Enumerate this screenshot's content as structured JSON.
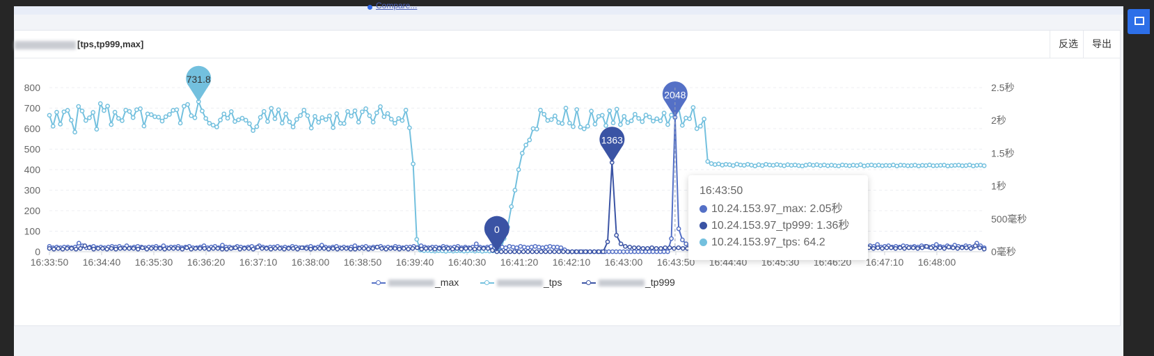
{
  "banner": {
    "link_text": "Compare..."
  },
  "card": {
    "title_suffix": "[tps,tp999,max]",
    "buttons": {
      "invert": "反选",
      "export": "导出"
    }
  },
  "colors": {
    "max": "#5470c6",
    "tps": "#73c0de",
    "tp999": "#3a53a4",
    "accent": "#2d6fe8"
  },
  "tooltip": {
    "time": "16:43:50",
    "rows": [
      {
        "text": "10.24.153.97_max: 2.05秒",
        "color": "#5470c6"
      },
      {
        "text": "10.24.153.97_tp999: 1.36秒",
        "color": "#3a53a4"
      },
      {
        "text": "10.24.153.97_tps: 64.2",
        "color": "#73c0de"
      }
    ]
  },
  "legend": [
    {
      "suffix": "_max",
      "color": "#5470c6"
    },
    {
      "suffix": "_tps",
      "color": "#73c0de"
    },
    {
      "suffix": "_tp999",
      "color": "#3a53a4"
    }
  ],
  "chart_data": {
    "type": "line",
    "x_ticks": [
      "16:33:50",
      "16:34:40",
      "16:35:30",
      "16:36:20",
      "16:37:10",
      "16:38:00",
      "16:38:50",
      "16:39:40",
      "16:40:30",
      "16:41:20",
      "16:42:10",
      "16:43:00",
      "16:43:50",
      "16:44:40",
      "16:45:30",
      "16:46:20",
      "16:47:10",
      "16:48:00"
    ],
    "y_left": {
      "ticks": [
        0,
        100,
        200,
        300,
        400,
        500,
        600,
        700,
        800
      ],
      "range": [
        0,
        800
      ]
    },
    "y_right": {
      "ticks": [
        "0毫秒",
        "500毫秒",
        "1秒",
        "1.5秒",
        "2秒",
        "2.5秒"
      ],
      "range_seconds": [
        0,
        2.5
      ]
    },
    "grid": true,
    "legend_position": "bottom",
    "markers": [
      {
        "series": "tps",
        "label": "731.8"
      },
      {
        "series": "max",
        "label": "2048"
      },
      {
        "series": "tp999",
        "label": "1363"
      },
      {
        "series": "tp999",
        "label": "0"
      }
    ],
    "series": [
      {
        "name": "_max",
        "axis": "right",
        "values": [
          0.08,
          0.06,
          0.07,
          0.06,
          0.07,
          0.07,
          0.06,
          0.07,
          0.13,
          0.09,
          0.06,
          0.07,
          0.08,
          0.06,
          0.07,
          0.06,
          0.07,
          0.08,
          0.07,
          0.08,
          0.06,
          0.09,
          0.06,
          0.07,
          0.08,
          0.07,
          0.06,
          0.07,
          0.07,
          0.08,
          0.06,
          0.09,
          0.06,
          0.07,
          0.07,
          0.08,
          0.06,
          0.07,
          0.08,
          0.06,
          0.06,
          0.07,
          0.09,
          0.06,
          0.07,
          0.08,
          0.06,
          0.1,
          0.07,
          0.07,
          0.06,
          0.08,
          0.07,
          0.06,
          0.07,
          0.08,
          0.06,
          0.09,
          0.07,
          0.06,
          0.07,
          0.07,
          0.08,
          0.06,
          0.07,
          0.06,
          0.08,
          0.07,
          0.06,
          0.06,
          0.07,
          0.08,
          0.06,
          0.07,
          0.1,
          0.07,
          0.06,
          0.07,
          0.08,
          0.06,
          0.07,
          0.06,
          0.07,
          0.09,
          0.06,
          0.07,
          0.08,
          0.06,
          0.07,
          0.07,
          0.08,
          0.06,
          0.07,
          0.06,
          0.08,
          0.07,
          0.06,
          0.07,
          0.07,
          0.08,
          0.06,
          0.09,
          0.07,
          0.06,
          0.07,
          0.07,
          0.06,
          0.08,
          0.07,
          0.06,
          0.07,
          0.08,
          0.06,
          0.07,
          0.06,
          0.07,
          0.12,
          0.07,
          0.06,
          0.07,
          0.08,
          0.06,
          0.07,
          0.07,
          0.06,
          0.08,
          0.07,
          0.06,
          0.08,
          0.07,
          0.06,
          0.07,
          0.08,
          0.07,
          0.06,
          0.07,
          0.08,
          0.07,
          0.07,
          0.06,
          0.03,
          0.0,
          0.0,
          0.0,
          0.0,
          0.0,
          0.0,
          0.0,
          0.0,
          0.0,
          0.0,
          0.0,
          0.0,
          0.0,
          0.0,
          0.0,
          0.0,
          0.0,
          0.0,
          0.0,
          0.0,
          0.0,
          0.0,
          0.0,
          0.0,
          0.0,
          0.0,
          0.0,
          0.0,
          0.2,
          2.05,
          0.35,
          0.18,
          0.12,
          0.1,
          0.08,
          0.09,
          0.08,
          0.07,
          0.09,
          0.08,
          0.07,
          0.08,
          0.09,
          0.07,
          0.08,
          0.07,
          0.08,
          0.09,
          0.07,
          0.08,
          0.09,
          0.07,
          0.08,
          0.07,
          0.09,
          0.08,
          0.07,
          0.08,
          0.07,
          0.09,
          0.08,
          0.07,
          0.08,
          0.09,
          0.07,
          0.08,
          0.07,
          0.08,
          0.09,
          0.07,
          0.08,
          0.07,
          0.09,
          0.08,
          0.07,
          0.08,
          0.07,
          0.09,
          0.08,
          0.07,
          0.08,
          0.07,
          0.09,
          0.08,
          0.11,
          0.07,
          0.08,
          0.09,
          0.07,
          0.08,
          0.07,
          0.09,
          0.08,
          0.07,
          0.08,
          0.07,
          0.09,
          0.08,
          0.07,
          0.08,
          0.11,
          0.08,
          0.07,
          0.09,
          0.07,
          0.1,
          0.08,
          0.07,
          0.09,
          0.08,
          0.07,
          0.13,
          0.09,
          0.06
        ]
      },
      {
        "name": "_tps",
        "axis": "left",
        "values": [
          665,
          612,
          680,
          622,
          682,
          689,
          641,
          583,
          708,
          686,
          640,
          653,
          679,
          597,
          722,
          688,
          710,
          620,
          680,
          650,
          639,
          690,
          684,
          654,
          692,
          697,
          613,
          672,
          668,
          658,
          656,
          637,
          658,
          669,
          689,
          692,
          627,
          709,
          718,
          663,
          653,
          731.8,
          686,
          650,
          626,
          617,
          608,
          642,
          672,
          651,
          683,
          635,
          643,
          651,
          641,
          624,
          591,
          610,
          655,
          684,
          635,
          699,
          648,
          692,
          627,
          672,
          633,
          608,
          645,
          664,
          690,
          663,
          603,
          660,
          631,
          654,
          644,
          662,
          605,
          673,
          626,
          625,
          684,
          661,
          687,
          632,
          682,
          697,
          663,
          632,
          677,
          707,
          658,
          674,
          646,
          626,
          650,
          640,
          690,
          604,
          428,
          60,
          8,
          5,
          6,
          4,
          3,
          5,
          4,
          2,
          5,
          3,
          4,
          5,
          3,
          4,
          6,
          3,
          5,
          2,
          4,
          3,
          4,
          5,
          3,
          64.2,
          120,
          220,
          300,
          400,
          480,
          520,
          545,
          600,
          598,
          690,
          670,
          640,
          644,
          662,
          630,
          625,
          700,
          627,
          610,
          693,
          607,
          599,
          612,
          685,
          622,
          660,
          665,
          615,
          687,
          628,
          695,
          620,
          660,
          629,
          638,
          670,
          650,
          634,
          666,
          657,
          637,
          648,
          638,
          676,
          620,
          666,
          654,
          700,
          616,
          652,
          648,
          703,
          600,
          612,
          647,
          440,
          430,
          425,
          428,
          422,
          426,
          424,
          420,
          427,
          423,
          421,
          426,
          422,
          418,
          424,
          420,
          426,
          423,
          421,
          425,
          422,
          419,
          424,
          421,
          423,
          420,
          418,
          422,
          425,
          421,
          424,
          420,
          423,
          419,
          422,
          420,
          418,
          423,
          421,
          419,
          422,
          420,
          424,
          418,
          421,
          423,
          420,
          422,
          419,
          421,
          420,
          423,
          418,
          422,
          421,
          419,
          420,
          422,
          418,
          421,
          420,
          423,
          419,
          420,
          421,
          422,
          418,
          420,
          421,
          422,
          419,
          420,
          423,
          418,
          421,
          422,
          419
        ]
      },
      {
        "name": "_tp999",
        "axis": "right",
        "values": [
          0.05,
          0.04,
          0.05,
          0.04,
          0.05,
          0.05,
          0.04,
          0.05,
          0.09,
          0.06,
          0.04,
          0.05,
          0.05,
          0.04,
          0.05,
          0.04,
          0.05,
          0.05,
          0.05,
          0.05,
          0.04,
          0.06,
          0.04,
          0.05,
          0.05,
          0.05,
          0.04,
          0.05,
          0.05,
          0.05,
          0.04,
          0.06,
          0.04,
          0.05,
          0.05,
          0.05,
          0.04,
          0.05,
          0.05,
          0.04,
          0.04,
          0.05,
          0.06,
          0.04,
          0.05,
          0.05,
          0.04,
          0.07,
          0.05,
          0.05,
          0.04,
          0.05,
          0.05,
          0.04,
          0.05,
          0.05,
          0.04,
          0.06,
          0.05,
          0.04,
          0.05,
          0.05,
          0.05,
          0.04,
          0.05,
          0.04,
          0.05,
          0.05,
          0.04,
          0.04,
          0.05,
          0.05,
          0.04,
          0.05,
          0.07,
          0.05,
          0.04,
          0.05,
          0.05,
          0.04,
          0.05,
          0.04,
          0.05,
          0.06,
          0.04,
          0.05,
          0.05,
          0.04,
          0.05,
          0.05,
          0.05,
          0.04,
          0.05,
          0.04,
          0.05,
          0.05,
          0.04,
          0.05,
          0.05,
          0.05,
          0.02,
          0.0,
          0.0,
          0.0,
          0.0,
          0.0,
          0.0,
          0.0,
          0.0,
          0.0,
          0.0,
          0.0,
          0.0,
          0.0,
          0.0,
          0.0,
          0.0,
          0.0,
          0.0,
          0.0,
          0.0,
          0.0,
          0.0,
          0.0,
          0.0,
          0.0,
          0.15,
          1.36,
          0.25,
          0.12,
          0.08,
          0.07,
          0.06,
          0.06,
          0.05,
          0.05,
          0.06,
          0.05,
          0.05,
          0.06,
          0.06,
          0.05,
          0.06,
          0.05,
          0.05,
          0.06,
          0.05,
          0.06,
          0.06,
          0.05,
          0.06,
          0.05,
          0.06,
          0.06,
          0.05,
          0.06,
          0.05,
          0.06,
          0.06,
          0.05,
          0.06,
          0.06,
          0.05,
          0.06,
          0.05,
          0.06,
          0.06,
          0.05,
          0.06,
          0.05,
          0.06,
          0.06,
          0.05,
          0.06,
          0.05,
          0.06,
          0.06,
          0.05,
          0.06,
          0.05,
          0.06,
          0.06,
          0.08,
          0.05,
          0.06,
          0.06,
          0.05,
          0.06,
          0.05,
          0.06,
          0.06,
          0.05,
          0.06,
          0.05,
          0.06,
          0.06,
          0.05,
          0.06,
          0.08,
          0.06,
          0.05,
          0.06,
          0.05,
          0.07,
          0.06,
          0.05,
          0.06,
          0.06,
          0.05,
          0.09,
          0.06,
          0.04
        ]
      }
    ]
  }
}
